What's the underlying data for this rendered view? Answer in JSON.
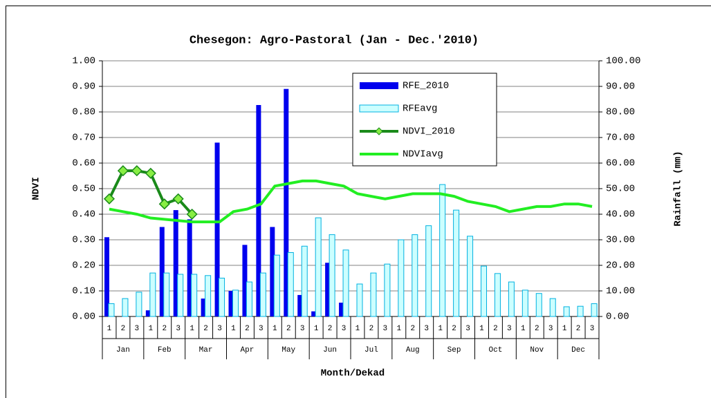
{
  "chart_data": {
    "type": "bar-line",
    "title": "Chesegon: Agro-Pastoral (Jan - Dec.'2010)",
    "xlabel": "Month/Dekad",
    "ylabel": "NDVI",
    "y2label": "Rainfall (mm)",
    "categories": [
      "1",
      "2",
      "3",
      "1",
      "2",
      "3",
      "1",
      "2",
      "3",
      "1",
      "2",
      "3",
      "1",
      "2",
      "3",
      "1",
      "2",
      "3",
      "1",
      "2",
      "3",
      "1",
      "2",
      "3",
      "1",
      "2",
      "3",
      "1",
      "2",
      "3",
      "1",
      "2",
      "3",
      "1",
      "2",
      "3"
    ],
    "months": [
      "Jan",
      "Feb",
      "Mar",
      "Apr",
      "May",
      "Jun",
      "Jul",
      "Aug",
      "Sep",
      "Oct",
      "Nov",
      "Dec"
    ],
    "ylim": [
      0,
      1
    ],
    "yticks": [
      {
        "value": 0,
        "label": "0.00"
      },
      {
        "value": 0.1,
        "label": "0.10"
      },
      {
        "value": 0.2,
        "label": "0.20"
      },
      {
        "value": 0.3,
        "label": "0.30"
      },
      {
        "value": 0.4,
        "label": "0.40"
      },
      {
        "value": 0.5,
        "label": "0.50"
      },
      {
        "value": 0.6,
        "label": "0.60"
      },
      {
        "value": 0.7,
        "label": "0.70"
      },
      {
        "value": 0.8,
        "label": "0.80"
      },
      {
        "value": 0.9,
        "label": "0.90"
      },
      {
        "value": 1,
        "label": "1.00"
      }
    ],
    "y2lim": [
      0,
      100
    ],
    "y2ticks": [
      {
        "value": 0,
        "label": "0.00"
      },
      {
        "value": 10,
        "label": "10.00"
      },
      {
        "value": 20,
        "label": "20.00"
      },
      {
        "value": 30,
        "label": "30.00"
      },
      {
        "value": 40,
        "label": "40.00"
      },
      {
        "value": 50,
        "label": "50.00"
      },
      {
        "value": 60,
        "label": "60.00"
      },
      {
        "value": 70,
        "label": "70.00"
      },
      {
        "value": 80,
        "label": "80.00"
      },
      {
        "value": 90,
        "label": "90.00"
      },
      {
        "value": 100,
        "label": "100.00"
      }
    ],
    "grid": true,
    "series": [
      {
        "name": "RFE_2010",
        "type": "bar",
        "axis": "y2",
        "color": "#0000ee",
        "values": [
          31,
          0,
          0,
          2.4,
          35,
          41.6,
          38,
          7,
          68,
          10,
          28,
          82.7,
          35,
          89,
          8.4,
          2,
          21,
          5.4,
          0,
          0,
          0,
          0,
          0,
          0,
          0,
          0,
          0,
          0,
          0,
          0,
          0,
          0,
          0,
          0,
          0,
          0
        ]
      },
      {
        "name": "RFEavg",
        "type": "bar",
        "axis": "y2",
        "color": "#ccffff",
        "stroke": "#00b0e0",
        "values": [
          5,
          7,
          9.5,
          17,
          17,
          16.5,
          16.5,
          16,
          15,
          10.3,
          13.5,
          17,
          24,
          25,
          27.5,
          38.6,
          32,
          26,
          12.7,
          17,
          20.5,
          30,
          32,
          35.5,
          51.6,
          41.6,
          31.4,
          19.7,
          16.8,
          13.5,
          10.3,
          9,
          7,
          3.8,
          4,
          5
        ]
      },
      {
        "name": "NDVI_2010",
        "type": "line",
        "color": "#1a8a1a",
        "marker_color": "#88ee44",
        "values": [
          0.46,
          0.57,
          0.57,
          0.56,
          0.44,
          0.46,
          0.4,
          null,
          null,
          null,
          null,
          null,
          null,
          null,
          null,
          null,
          null,
          null,
          null,
          null,
          null,
          null,
          null,
          null,
          null,
          null,
          null,
          null,
          null,
          null,
          null,
          null,
          null,
          null,
          null,
          null
        ]
      },
      {
        "name": "NDVIavg",
        "type": "line",
        "color": "#22ee22",
        "values": [
          0.42,
          0.41,
          0.4,
          0.385,
          0.38,
          0.375,
          0.37,
          0.37,
          0.37,
          0.41,
          0.42,
          0.44,
          0.51,
          0.52,
          0.53,
          0.53,
          0.52,
          0.51,
          0.48,
          0.47,
          0.46,
          0.47,
          0.48,
          0.48,
          0.48,
          0.47,
          0.45,
          0.44,
          0.43,
          0.41,
          0.42,
          0.43,
          0.43,
          0.44,
          0.44,
          0.43
        ]
      }
    ]
  }
}
